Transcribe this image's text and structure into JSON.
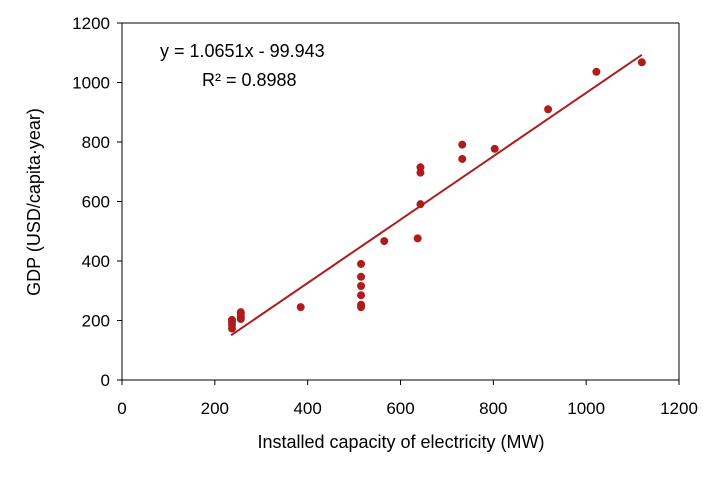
{
  "chart_data": {
    "type": "scatter",
    "title": "",
    "xlabel": "Installed capacity of electricity (MW)",
    "ylabel": "GDP (USD/capita·year)",
    "xlim": [
      0,
      1200
    ],
    "ylim": [
      0,
      1200
    ],
    "xticks": [
      "0",
      "200",
      "400",
      "600",
      "800",
      "1000",
      "1200"
    ],
    "yticks": [
      "0",
      "200",
      "400",
      "600",
      "800",
      "1000",
      "1200"
    ],
    "grid": false,
    "legend": "none",
    "marker_color": "#b01c1c",
    "trendline_color": "#b01c1c",
    "trendline": {
      "slope": 1.0651,
      "intercept": -99.943,
      "x_range": [
        235,
        1120
      ],
      "equation_label": "y = 1.0651x - 99.943",
      "r2_label": "R² = 0.8988"
    },
    "points": [
      {
        "x": 237,
        "y": 173
      },
      {
        "x": 237,
        "y": 185
      },
      {
        "x": 237,
        "y": 195
      },
      {
        "x": 237,
        "y": 202
      },
      {
        "x": 256,
        "y": 205
      },
      {
        "x": 256,
        "y": 212
      },
      {
        "x": 256,
        "y": 222
      },
      {
        "x": 256,
        "y": 228
      },
      {
        "x": 385,
        "y": 245
      },
      {
        "x": 515,
        "y": 245
      },
      {
        "x": 515,
        "y": 253
      },
      {
        "x": 515,
        "y": 285
      },
      {
        "x": 515,
        "y": 316
      },
      {
        "x": 515,
        "y": 347
      },
      {
        "x": 515,
        "y": 390
      },
      {
        "x": 565,
        "y": 467
      },
      {
        "x": 637,
        "y": 476
      },
      {
        "x": 643,
        "y": 591
      },
      {
        "x": 643,
        "y": 697
      },
      {
        "x": 643,
        "y": 715
      },
      {
        "x": 733,
        "y": 743
      },
      {
        "x": 733,
        "y": 791
      },
      {
        "x": 803,
        "y": 777
      },
      {
        "x": 918,
        "y": 910
      },
      {
        "x": 1022,
        "y": 1036
      },
      {
        "x": 1120,
        "y": 1068
      }
    ]
  }
}
